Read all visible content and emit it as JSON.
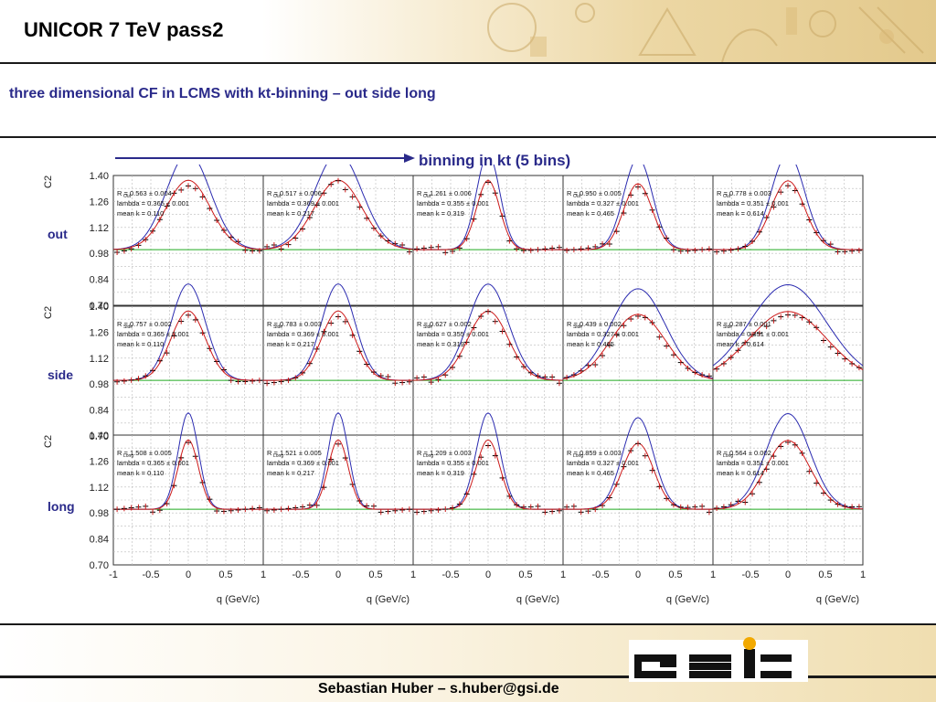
{
  "slide": {
    "title": "UNICOR 7 TeV pass2",
    "subtitle": "three dimensional CF in LCMS with kt-binning – out side long",
    "arrow_label": "binning in kt (5 bins)",
    "row_labels": [
      "out",
      "side",
      "long"
    ],
    "footer_author": "Sebastian Huber – s.huber@gsi.de",
    "logo_text": "GSI"
  },
  "chart_data": {
    "type": "line",
    "ylabel": "C2",
    "xlabel": "q (GeV/c)",
    "xlim": [
      -1,
      1
    ],
    "ylim": [
      0.7,
      1.4
    ],
    "xticks": [
      "-1",
      "-0.5",
      "0",
      "0.5",
      "1"
    ],
    "yticks": [
      "1.40",
      "1.26",
      "1.12",
      "0.98",
      "0.84",
      "0.70"
    ],
    "grid": true,
    "colors": {
      "fit": "#2b2bb0",
      "data": "#000000",
      "model": "#cc1a1a",
      "baseline": "#22aa22"
    },
    "rows": [
      "out",
      "side",
      "long"
    ],
    "kt_bins": [
      {
        "lambda": "lambda = 0.365 ± 0.001",
        "mean_kt": "mean k = 0.110",
        "lambda_val": 0.365
      },
      {
        "lambda": "lambda = 0.369 ± 0.001",
        "mean_kt": "mean k = 0.217",
        "lambda_val": 0.369
      },
      {
        "lambda": "lambda = 0.355 ± 0.001",
        "mean_kt": "mean k = 0.319",
        "lambda_val": 0.355
      },
      {
        "lambda": "lambda = 0.327 ± 0.001",
        "mean_kt": "mean k = 0.465",
        "lambda_val": 0.327
      },
      {
        "lambda": "lambda = 0.351 ± 0.001",
        "mean_kt": "mean k = 0.614",
        "lambda_val": 0.351
      }
    ],
    "panels": [
      [
        {
          "radius_label": "R   = 0.563 ± 0.004",
          "sub": "Out",
          "R": 0.563
        },
        {
          "radius_label": "R   = 0.517 ± 0.006",
          "sub": "Out",
          "R": 0.517
        },
        {
          "radius_label": "R   = 1.261 ± 0.006",
          "sub": "Out",
          "R": 1.261
        },
        {
          "radius_label": "R   = 0.950 ± 0.005",
          "sub": "Out",
          "R": 0.95
        },
        {
          "radius_label": "R   = 0.778 ± 0.003",
          "sub": "Out",
          "R": 0.778
        }
      ],
      [
        {
          "radius_label": "R   = 0.757 ± 0.002",
          "sub": "Side",
          "R": 0.757
        },
        {
          "radius_label": "R   = 0.783 ± 0.003",
          "sub": "Side",
          "R": 0.783
        },
        {
          "radius_label": "R   = 0.627 ± 0.002",
          "sub": "Side",
          "R": 0.627
        },
        {
          "radius_label": "R   = 0.439 ± 0.002",
          "sub": "Side",
          "R": 0.439
        },
        {
          "radius_label": "R   = 0.287 ± 0.001",
          "sub": "Side",
          "R": 0.287
        }
      ],
      [
        {
          "radius_label": "R   = 1.508 ± 0.005",
          "sub": "Long",
          "R": 1.508
        },
        {
          "radius_label": "R   = 1.521 ± 0.005",
          "sub": "Long",
          "R": 1.521
        },
        {
          "radius_label": "R   = 1.209 ± 0.003",
          "sub": "Long",
          "R": 1.209
        },
        {
          "radius_label": "R   = 0.859 ± 0.003",
          "sub": "Long",
          "R": 0.859
        },
        {
          "radius_label": "R   = 0.564 ± 0.002",
          "sub": "Long",
          "R": 0.564
        }
      ]
    ]
  }
}
